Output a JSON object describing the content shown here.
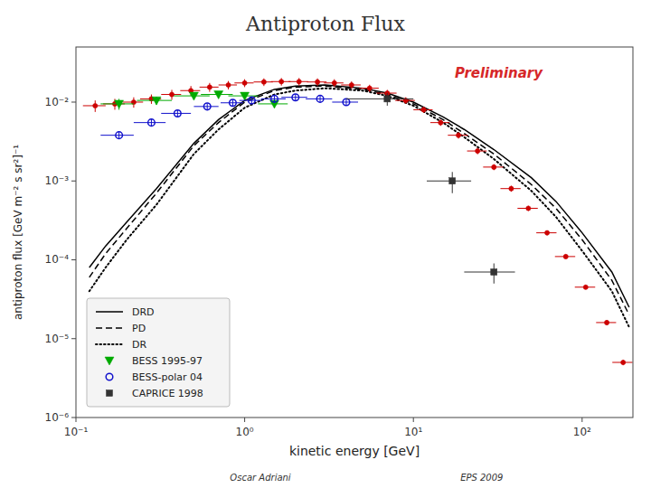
{
  "chart_data": {
    "type": "line",
    "title": "Antiproton Flux",
    "xlabel": "kinetic energy [GeV]",
    "ylabel": "antiproton flux [GeV m⁻² s sr²]⁻¹",
    "annotations": [
      "Preliminary",
      "Oscar Adriani",
      "EPS 2009"
    ],
    "log": true,
    "grid": false,
    "legend": "lower left",
    "xlim": [
      0.1,
      200
    ],
    "ylim": [
      1e-06,
      0.05
    ],
    "xticks": [
      {
        "value": 0.1,
        "label": "10⁻¹"
      },
      {
        "value": 1,
        "label": "10⁰"
      },
      {
        "value": 10,
        "label": "10¹"
      },
      {
        "value": 100,
        "label": "10²"
      }
    ],
    "yticks": [
      {
        "value": 1e-06,
        "label": "10⁻⁶"
      },
      {
        "value": 1e-05,
        "label": "10⁻⁵"
      },
      {
        "value": 0.0001,
        "label": "10⁻⁴"
      },
      {
        "value": 0.001,
        "label": "10⁻³"
      },
      {
        "value": 0.01,
        "label": "10⁻²"
      }
    ],
    "series": [
      {
        "name": "DRD",
        "type": "line",
        "color": "black",
        "line_style": "solid",
        "x": [
          0.12,
          0.15,
          0.2,
          0.3,
          0.5,
          0.7,
          1.0,
          1.5,
          2.0,
          3.0,
          5.0,
          7.0,
          10.0,
          15.0,
          20.0,
          30.0,
          50.0,
          70.0,
          100.0,
          150.0,
          190.0
        ],
        "values": [
          8e-05,
          0.00015,
          0.0003,
          0.0008,
          0.003,
          0.006,
          0.0105,
          0.0145,
          0.016,
          0.0165,
          0.015,
          0.013,
          0.01,
          0.0065,
          0.0045,
          0.0025,
          0.0011,
          0.00055,
          0.00022,
          7e-05,
          2.5e-05
        ]
      },
      {
        "name": "PD",
        "type": "line",
        "color": "black",
        "line_style": "dashed",
        "x": [
          0.12,
          0.15,
          0.2,
          0.3,
          0.5,
          0.7,
          1.0,
          1.5,
          2.0,
          3.0,
          5.0,
          7.0,
          10.0,
          15.0,
          20.0,
          30.0,
          50.0,
          70.0,
          100.0,
          150.0,
          190.0
        ],
        "values": [
          6e-05,
          0.00012,
          0.00025,
          0.0007,
          0.0028,
          0.0055,
          0.01,
          0.014,
          0.0155,
          0.016,
          0.0145,
          0.0125,
          0.0095,
          0.006,
          0.004,
          0.0022,
          0.0009,
          0.00045,
          0.00018,
          5.5e-05,
          2e-05
        ]
      },
      {
        "name": "DR",
        "type": "line",
        "color": "black",
        "line_style": "dotted",
        "x": [
          0.12,
          0.15,
          0.2,
          0.3,
          0.5,
          0.7,
          1.0,
          1.5,
          2.0,
          3.0,
          5.0,
          7.0,
          10.0,
          15.0,
          20.0,
          30.0,
          50.0,
          70.0,
          100.0,
          150.0,
          190.0
        ],
        "values": [
          4e-05,
          8e-05,
          0.00018,
          0.0005,
          0.0022,
          0.0045,
          0.0085,
          0.0125,
          0.014,
          0.015,
          0.014,
          0.012,
          0.009,
          0.0055,
          0.0036,
          0.0019,
          0.00075,
          0.00035,
          0.00013,
          4e-05,
          1.4e-05
        ]
      },
      {
        "type": "scatter",
        "color": "#cc0000",
        "marker": "circle",
        "x": [
          0.13,
          0.17,
          0.22,
          0.28,
          0.37,
          0.48,
          0.62,
          0.8,
          1.0,
          1.3,
          1.65,
          2.1,
          2.7,
          3.4,
          4.3,
          5.5,
          7.0,
          9.0,
          11.5,
          14.5,
          18.5,
          24.0,
          30.0,
          38.0,
          48.0,
          62.0,
          80.0,
          105.0,
          140.0,
          175.0
        ],
        "values": [
          0.009,
          0.0095,
          0.01,
          0.011,
          0.0125,
          0.014,
          0.0155,
          0.0165,
          0.0175,
          0.018,
          0.0182,
          0.0182,
          0.018,
          0.0175,
          0.0165,
          0.015,
          0.013,
          0.0105,
          0.008,
          0.0055,
          0.0038,
          0.0024,
          0.0015,
          0.0008,
          0.00045,
          0.00022,
          0.00011,
          4.5e-05,
          1.6e-05,
          5e-06
        ],
        "xerr_lo": [
          0.02,
          0.025,
          0.03,
          0.04,
          0.05,
          0.065,
          0.08,
          0.1,
          0.13,
          0.17,
          0.22,
          0.28,
          0.36,
          0.45,
          0.57,
          0.73,
          0.95,
          1.2,
          1.5,
          1.9,
          2.5,
          3.2,
          4.1,
          5.2,
          6.6,
          8.5,
          11.0,
          14.5,
          19.0,
          24.0
        ],
        "xerr_hi": [
          0.02,
          0.025,
          0.03,
          0.04,
          0.05,
          0.065,
          0.08,
          0.1,
          0.13,
          0.17,
          0.22,
          0.28,
          0.36,
          0.45,
          0.57,
          0.73,
          0.95,
          1.2,
          1.5,
          1.9,
          2.5,
          3.2,
          4.1,
          5.2,
          6.6,
          8.5,
          11.0,
          14.5,
          19.0,
          24.0
        ],
        "yerr": [
          0.0015,
          0.0015,
          0.0015,
          0.0015,
          0.0018,
          0.002,
          0.002,
          0.002,
          0.002,
          0.002,
          0.002,
          0.002,
          0.002,
          0.002,
          0.0018,
          0.0016,
          0.0013,
          0.001,
          0.0007,
          0.0005,
          0.00035,
          0.00022,
          0.00013,
          7e-05,
          3.5e-05,
          1.6e-05,
          7e-06,
          3e-06,
          1.2e-06,
          4e-07
        ]
      },
      {
        "name": "BESS 1995-97",
        "type": "scatter",
        "color": "#00aa00",
        "marker": "triangle-down",
        "x": [
          0.18,
          0.3,
          0.5,
          0.7,
          1.0,
          1.5
        ],
        "values": [
          0.0095,
          0.0105,
          0.012,
          0.0125,
          0.012,
          0.0095
        ],
        "xerr": [
          0.04,
          0.07,
          0.12,
          0.15,
          0.2,
          0.3
        ],
        "yerr": [
          0.0015,
          0.0012,
          0.0012,
          0.0012,
          0.0012,
          0.001
        ]
      },
      {
        "name": "BESS-polar 04",
        "type": "scatter",
        "color": "#1111cc",
        "marker": "circle-open",
        "x": [
          0.18,
          0.28,
          0.4,
          0.6,
          0.85,
          1.1,
          1.5,
          2.0,
          2.8,
          4.0
        ],
        "values": [
          0.0038,
          0.0055,
          0.0072,
          0.0088,
          0.0098,
          0.0105,
          0.011,
          0.0115,
          0.011,
          0.01
        ],
        "xerr": [
          0.04,
          0.06,
          0.08,
          0.1,
          0.13,
          0.17,
          0.25,
          0.35,
          0.5,
          0.7
        ],
        "yerr": [
          0.0004,
          0.0006,
          0.0007,
          0.0008,
          0.0009,
          0.001,
          0.001,
          0.0011,
          0.0011,
          0.001
        ]
      },
      {
        "name": "CAPRICE 1998",
        "type": "scatter",
        "color": "#333333",
        "marker": "square",
        "x": [
          7.0,
          17.0,
          30.0
        ],
        "values": [
          0.011,
          0.001,
          7e-05
        ],
        "xerr": [
          3.0,
          5.0,
          10.0
        ],
        "yerr": [
          0.002,
          0.0003,
          2e-05
        ]
      }
    ]
  }
}
